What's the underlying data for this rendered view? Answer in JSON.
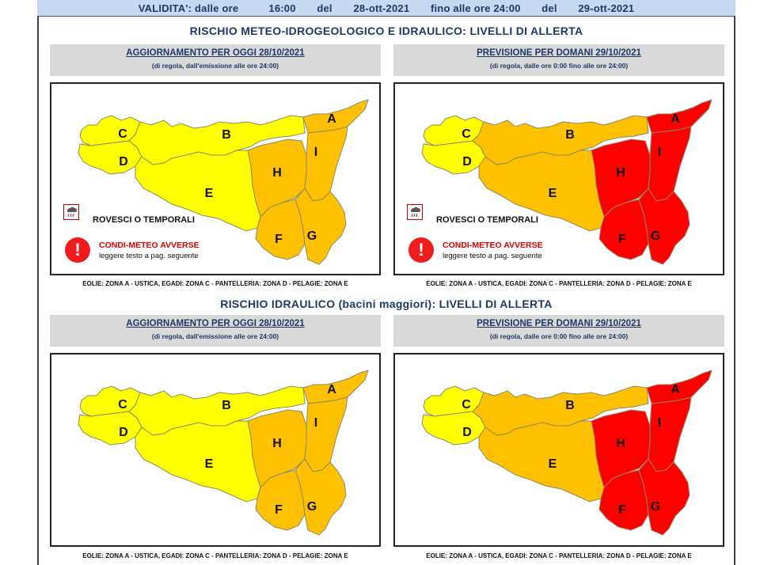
{
  "validity": {
    "prefix": "VALIDITA': dalle ore",
    "from_time": "16:00",
    "del1": "del",
    "from_date": "28-ott-2021",
    "until": "fino alle ore 24:00",
    "del2": "del",
    "to_date": "29-ott-2021"
  },
  "section1": {
    "title": "RISCHIO METEO-IDROGEOLOGICO E IDRAULICO: LIVELLI DI ALLERTA",
    "today_title": "AGGIORNAMENTO PER OGGI 28/10/2021",
    "today_sub": "(di regola, dall'emissione alle ore 24:00)",
    "tomorrow_title": "PREVISIONE PER DOMANI 29/10/2021",
    "tomorrow_sub": "(di regola, dalle ore 0:00 fino alle ore 24:00)"
  },
  "section2": {
    "title": "RISCHIO IDRAULICO (bacini maggiori): LIVELLI DI ALLERTA",
    "today_title": "AGGIORNAMENTO PER OGGI 28/10/2021",
    "today_sub": "(di regola, dall'emissione alle ore 24:00)",
    "tomorrow_title": "PREVISIONE PER DOMANI 29/10/2021",
    "tomorrow_sub": "(di regola, dalle ore 0:00 fino alle ore 24:00)"
  },
  "legend": {
    "storms": "ROVESCI O TEMPORALI",
    "adverse": "CONDI-METEO AVVERSE",
    "note": "leggere testo a pag. seguente",
    "warn_symbol": "!"
  },
  "footer": "EOLIE: ZONA A - USTICA, EGADI: ZONA C - PANTELLERIA: ZONA D - PELAGIE: ZONA E",
  "colors": {
    "yellow": "#ffff00",
    "orange": "#ffc000",
    "red": "#ff0000"
  },
  "maps": {
    "meteo_today": {
      "A": "orange",
      "B": "yellow",
      "C": "yellow",
      "D": "yellow",
      "E": "yellow",
      "F": "orange",
      "G": "orange",
      "H": "orange",
      "I": "orange"
    },
    "meteo_tomorrow": {
      "A": "red",
      "B": "orange",
      "C": "yellow",
      "D": "yellow",
      "E": "orange",
      "F": "red",
      "G": "red",
      "H": "red",
      "I": "red"
    },
    "idro_today": {
      "A": "orange",
      "B": "yellow",
      "C": "yellow",
      "D": "yellow",
      "E": "yellow",
      "F": "orange",
      "G": "orange",
      "H": "orange",
      "I": "orange"
    },
    "idro_tomorrow": {
      "A": "red",
      "B": "orange",
      "C": "yellow",
      "D": "yellow",
      "E": "orange",
      "F": "red",
      "G": "red",
      "H": "red",
      "I": "red"
    }
  },
  "zone_labels": [
    "A",
    "B",
    "C",
    "D",
    "E",
    "F",
    "G",
    "H",
    "I"
  ],
  "icons": {
    "storm": "thunderstorm-icon",
    "warning": "warning-icon"
  }
}
